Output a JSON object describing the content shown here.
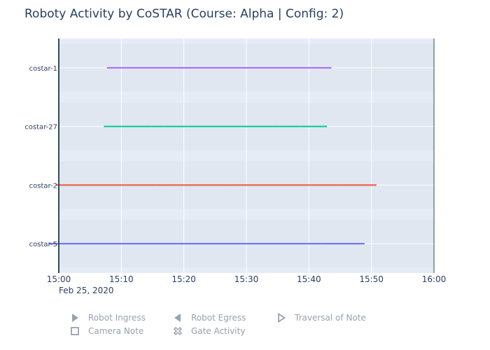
{
  "chart_data": {
    "type": "timeline",
    "title": "Roboty Activity by CoSTAR (Course: Alpha | Config: 2)",
    "x_ticks": [
      "15:00",
      "15:10",
      "15:20",
      "15:30",
      "15:40",
      "15:50",
      "16:00"
    ],
    "x_date_label": "Feb 25, 2020",
    "xlim": [
      "15:00",
      "16:00"
    ],
    "marker_time": "15:00",
    "grid": true,
    "categories": [
      "costar-1",
      "costar-27",
      "costar-2",
      "costar-5"
    ],
    "series": [
      {
        "name": "costar-1",
        "color": "#ab63fa",
        "segments": [
          [
            "15:07.7",
            "15:43.6"
          ]
        ]
      },
      {
        "name": "costar-27",
        "color": "#00cc96",
        "segments": [
          [
            "15:07.2",
            "15:14.8"
          ],
          [
            "15:14.8",
            "15:16.7"
          ],
          [
            "15:16.7",
            "15:20.5"
          ],
          [
            "15:20.5",
            "15:30.0"
          ],
          [
            "15:30.0",
            "15:35.3"
          ],
          [
            "15:35.3",
            "15:38.6"
          ],
          [
            "15:38.6",
            "15:42.9"
          ]
        ]
      },
      {
        "name": "costar-2",
        "color": "#ef553b",
        "segments": [
          [
            "14:59.6",
            "15:03.2"
          ],
          [
            "15:03.2",
            "15:07.0"
          ],
          [
            "15:07.0",
            "15:15.6"
          ],
          [
            "15:15.6",
            "15:17.0"
          ],
          [
            "15:17.0",
            "15:27.3"
          ],
          [
            "15:27.3",
            "15:45.4"
          ],
          [
            "15:45.4",
            "15:49.2"
          ],
          [
            "15:49.2",
            "15:50.8"
          ]
        ]
      },
      {
        "name": "costar-5",
        "color": "#636efa",
        "segments": [
          [
            "14:58.4",
            "15:42.0"
          ],
          [
            "15:42.0",
            "15:48.9"
          ]
        ]
      }
    ],
    "legend": {
      "position": "bottom",
      "items": [
        {
          "label": "Robot Ingress",
          "symbol": "triangle-right"
        },
        {
          "label": "Robot Egress",
          "symbol": "triangle-left"
        },
        {
          "label": "Traversal of Note",
          "symbol": "triangle-right-open"
        },
        {
          "label": "Camera Note",
          "symbol": "square-open"
        },
        {
          "label": "Gate Activity",
          "symbol": "x-open"
        }
      ]
    }
  }
}
